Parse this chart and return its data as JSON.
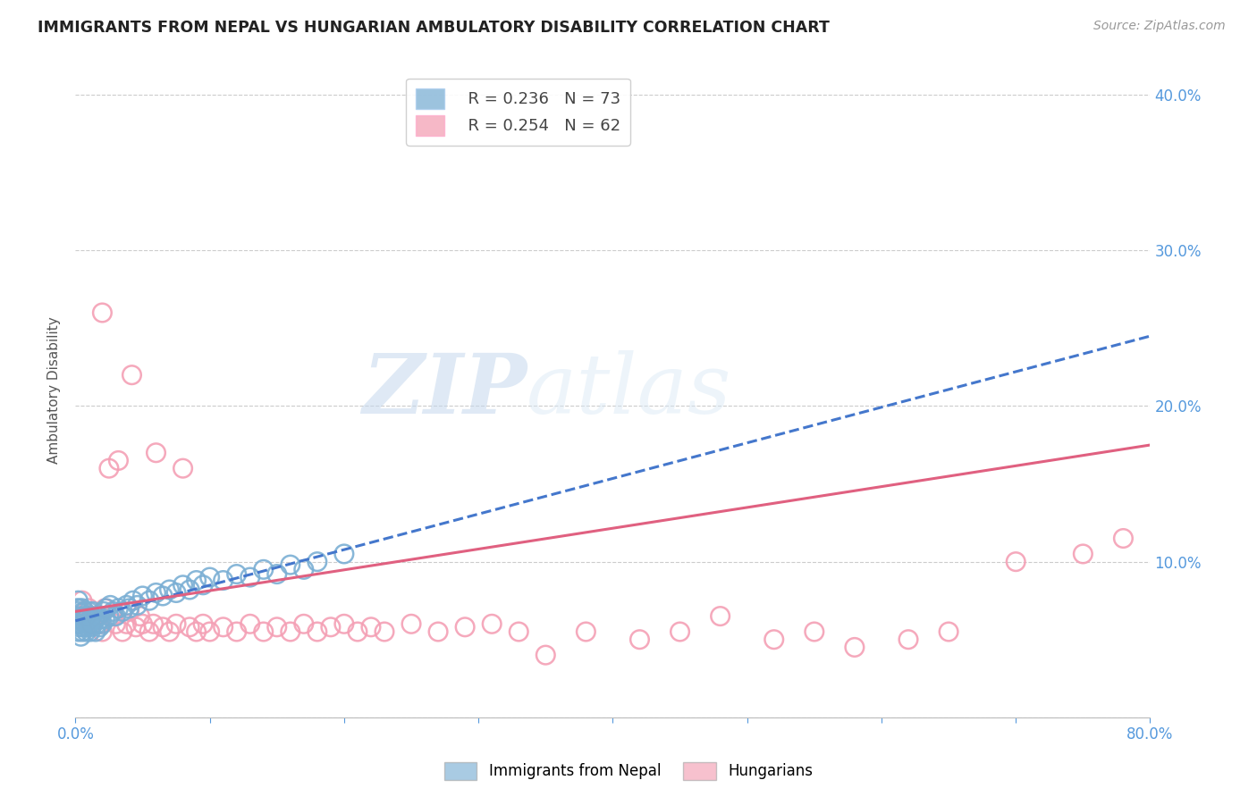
{
  "title": "IMMIGRANTS FROM NEPAL VS HUNGARIAN AMBULATORY DISABILITY CORRELATION CHART",
  "source": "Source: ZipAtlas.com",
  "ylabel": "Ambulatory Disability",
  "xlim": [
    0.0,
    0.8
  ],
  "ylim": [
    0.0,
    0.42
  ],
  "ytick_positions": [
    0.0,
    0.1,
    0.2,
    0.3,
    0.4
  ],
  "yticklabels_right": [
    "",
    "10.0%",
    "20.0%",
    "30.0%",
    "40.0%"
  ],
  "xtick_positions": [
    0.0,
    0.1,
    0.2,
    0.3,
    0.4,
    0.5,
    0.6,
    0.7,
    0.8
  ],
  "xticklabels": [
    "0.0%",
    "",
    "",
    "",
    "",
    "",
    "",
    "",
    "80.0%"
  ],
  "blue_R": 0.236,
  "blue_N": 73,
  "pink_R": 0.254,
  "pink_N": 62,
  "blue_color": "#7bafd4",
  "pink_color": "#f4a0b5",
  "blue_line_color": "#4477cc",
  "pink_line_color": "#e06080",
  "watermark_zip": "ZIP",
  "watermark_atlas": "atlas",
  "background_color": "#ffffff",
  "grid_color": "#cccccc",
  "title_color": "#222222",
  "axis_label_color": "#555555",
  "tick_color": "#5599dd",
  "blue_scatter_x": [
    0.001,
    0.001,
    0.001,
    0.002,
    0.002,
    0.002,
    0.002,
    0.003,
    0.003,
    0.003,
    0.004,
    0.004,
    0.004,
    0.005,
    0.005,
    0.005,
    0.006,
    0.006,
    0.007,
    0.007,
    0.008,
    0.008,
    0.009,
    0.009,
    0.01,
    0.01,
    0.011,
    0.011,
    0.012,
    0.012,
    0.013,
    0.013,
    0.014,
    0.015,
    0.015,
    0.016,
    0.017,
    0.018,
    0.019,
    0.02,
    0.021,
    0.022,
    0.023,
    0.025,
    0.026,
    0.028,
    0.03,
    0.032,
    0.035,
    0.038,
    0.04,
    0.043,
    0.046,
    0.05,
    0.055,
    0.06,
    0.065,
    0.07,
    0.075,
    0.08,
    0.085,
    0.09,
    0.095,
    0.1,
    0.11,
    0.12,
    0.13,
    0.14,
    0.15,
    0.16,
    0.17,
    0.18,
    0.2
  ],
  "blue_scatter_y": [
    0.06,
    0.065,
    0.07,
    0.055,
    0.06,
    0.068,
    0.075,
    0.058,
    0.063,
    0.07,
    0.052,
    0.06,
    0.067,
    0.055,
    0.062,
    0.07,
    0.058,
    0.065,
    0.06,
    0.068,
    0.055,
    0.063,
    0.058,
    0.065,
    0.06,
    0.068,
    0.055,
    0.063,
    0.058,
    0.065,
    0.06,
    0.068,
    0.062,
    0.055,
    0.063,
    0.06,
    0.065,
    0.058,
    0.063,
    0.06,
    0.068,
    0.063,
    0.07,
    0.065,
    0.072,
    0.068,
    0.065,
    0.07,
    0.068,
    0.072,
    0.07,
    0.075,
    0.072,
    0.078,
    0.075,
    0.08,
    0.078,
    0.082,
    0.08,
    0.085,
    0.082,
    0.088,
    0.085,
    0.09,
    0.088,
    0.092,
    0.09,
    0.095,
    0.092,
    0.098,
    0.095,
    0.1,
    0.105
  ],
  "pink_scatter_x": [
    0.005,
    0.008,
    0.01,
    0.012,
    0.015,
    0.018,
    0.02,
    0.022,
    0.025,
    0.028,
    0.03,
    0.032,
    0.035,
    0.038,
    0.04,
    0.042,
    0.045,
    0.048,
    0.05,
    0.055,
    0.058,
    0.06,
    0.065,
    0.07,
    0.075,
    0.08,
    0.085,
    0.09,
    0.095,
    0.1,
    0.11,
    0.12,
    0.13,
    0.14,
    0.15,
    0.16,
    0.17,
    0.18,
    0.19,
    0.2,
    0.21,
    0.22,
    0.23,
    0.25,
    0.27,
    0.29,
    0.31,
    0.33,
    0.35,
    0.38,
    0.42,
    0.45,
    0.48,
    0.52,
    0.55,
    0.58,
    0.62,
    0.65,
    0.7,
    0.75,
    0.78,
    0.02
  ],
  "pink_scatter_y": [
    0.075,
    0.065,
    0.07,
    0.06,
    0.065,
    0.06,
    0.055,
    0.07,
    0.16,
    0.065,
    0.06,
    0.165,
    0.055,
    0.06,
    0.068,
    0.22,
    0.058,
    0.065,
    0.06,
    0.055,
    0.06,
    0.17,
    0.058,
    0.055,
    0.06,
    0.16,
    0.058,
    0.055,
    0.06,
    0.055,
    0.058,
    0.055,
    0.06,
    0.055,
    0.058,
    0.055,
    0.06,
    0.055,
    0.058,
    0.06,
    0.055,
    0.058,
    0.055,
    0.06,
    0.055,
    0.058,
    0.06,
    0.055,
    0.04,
    0.055,
    0.05,
    0.055,
    0.065,
    0.05,
    0.055,
    0.045,
    0.05,
    0.055,
    0.1,
    0.105,
    0.115,
    0.26
  ],
  "blue_line_x0": 0.0,
  "blue_line_y0": 0.062,
  "blue_line_x1": 0.8,
  "blue_line_y1": 0.245,
  "pink_line_x0": 0.0,
  "pink_line_y0": 0.068,
  "pink_line_x1": 0.8,
  "pink_line_y1": 0.175
}
